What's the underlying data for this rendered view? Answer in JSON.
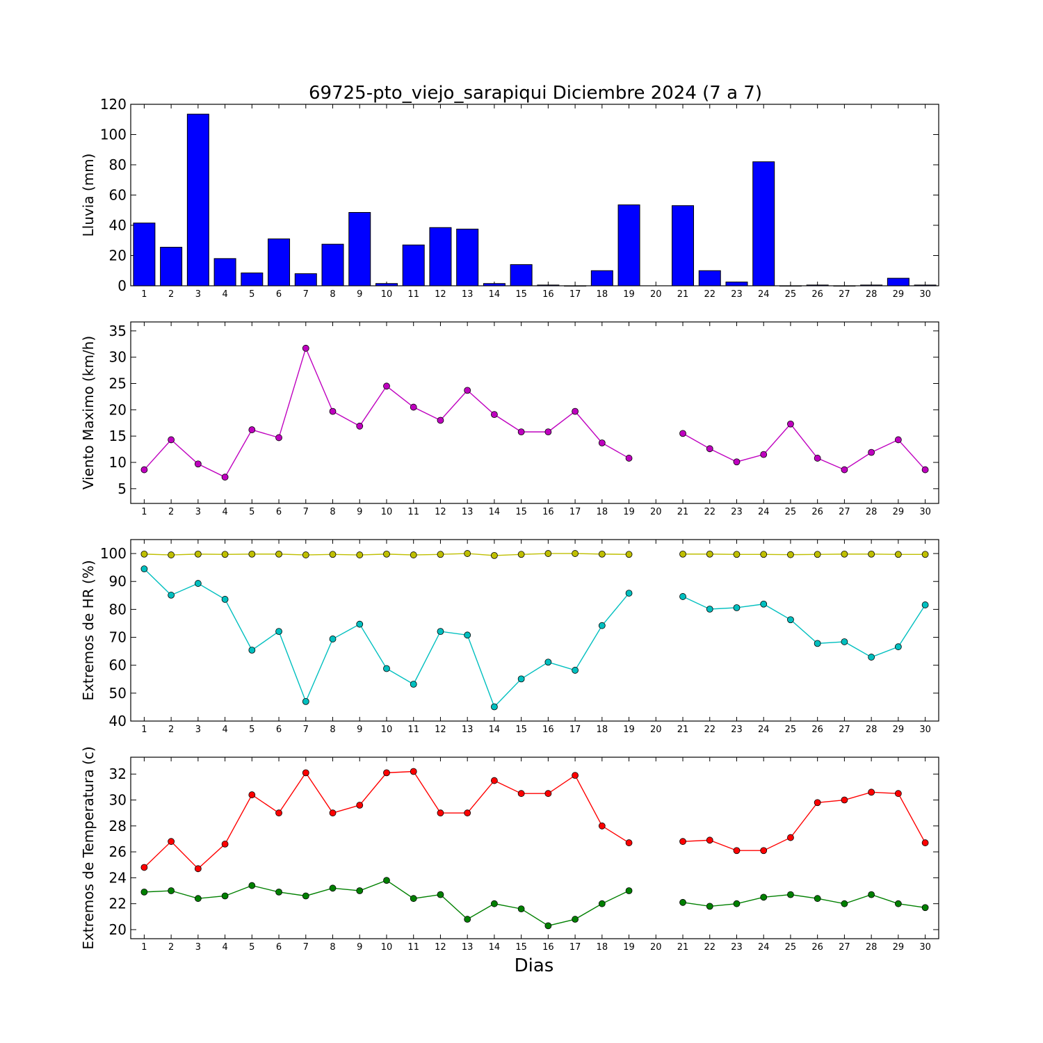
{
  "figure": {
    "title": "69725-pto_viejo_sarapiqui Diciembre 2024  (7 a 7)",
    "xlabel": "Dias"
  },
  "chart_data": [
    {
      "type": "bar",
      "ylabel": "Lluvia (mm)",
      "ylim": [
        0,
        120
      ],
      "yticks": [
        0,
        20,
        40,
        60,
        80,
        100,
        120
      ],
      "color": "#0000ff",
      "categories": [
        1,
        2,
        3,
        4,
        5,
        6,
        7,
        8,
        9,
        10,
        11,
        12,
        13,
        14,
        15,
        16,
        17,
        18,
        19,
        20,
        21,
        22,
        23,
        24,
        25,
        26,
        27,
        28,
        29,
        30
      ],
      "values": [
        41.5,
        25.5,
        113.5,
        18,
        8.5,
        31,
        8,
        27.5,
        48.5,
        1.5,
        27,
        38.5,
        37.5,
        1.5,
        14,
        0.5,
        0,
        10,
        53.5,
        null,
        53,
        10,
        2.5,
        82,
        0,
        0.5,
        0,
        0.5,
        5,
        0.5
      ]
    },
    {
      "type": "line",
      "ylabel": "Viento Maximo (km/h)",
      "ylim": [
        2.2,
        36.7
      ],
      "yticks": [
        5,
        10,
        15,
        20,
        25,
        30,
        35
      ],
      "x": [
        1,
        2,
        3,
        4,
        5,
        6,
        7,
        8,
        9,
        10,
        11,
        12,
        13,
        14,
        15,
        16,
        17,
        18,
        19,
        20,
        21,
        22,
        23,
        24,
        25,
        26,
        27,
        28,
        29,
        30
      ],
      "series": [
        {
          "color": "#bf00bf",
          "values": [
            8.6,
            14.3,
            9.7,
            7.2,
            16.2,
            14.7,
            31.7,
            19.7,
            16.9,
            24.5,
            20.5,
            18.0,
            23.7,
            19.1,
            15.8,
            15.8,
            19.7,
            13.7,
            10.8,
            null,
            15.5,
            12.6,
            10.1,
            11.5,
            17.3,
            10.8,
            8.6,
            11.9,
            14.3,
            8.6
          ]
        }
      ]
    },
    {
      "type": "line",
      "ylabel": "Extremos de HR (%)",
      "ylim": [
        40,
        105
      ],
      "yticks": [
        40,
        50,
        60,
        70,
        80,
        90,
        100
      ],
      "x": [
        1,
        2,
        3,
        4,
        5,
        6,
        7,
        8,
        9,
        10,
        11,
        12,
        13,
        14,
        15,
        16,
        17,
        18,
        19,
        20,
        21,
        22,
        23,
        24,
        25,
        26,
        27,
        28,
        29,
        30
      ],
      "series": [
        {
          "color": "#bfbf00",
          "values": [
            99.8,
            99.5,
            99.8,
            99.7,
            99.8,
            99.8,
            99.5,
            99.7,
            99.5,
            99.8,
            99.5,
            99.7,
            100,
            99.3,
            99.7,
            100,
            100,
            99.8,
            99.7,
            null,
            99.8,
            99.8,
            99.7,
            99.7,
            99.6,
            99.7,
            99.8,
            99.8,
            99.7,
            99.7
          ]
        },
        {
          "color": "#00bfbf",
          "values": [
            94.5,
            85.1,
            89.3,
            83.6,
            65.4,
            72.1,
            47.0,
            69.4,
            74.7,
            58.8,
            53.2,
            72.1,
            70.8,
            45.1,
            55.1,
            61.1,
            58.2,
            74.2,
            85.8,
            null,
            84.6,
            80.1,
            80.6,
            81.9,
            76.3,
            67.8,
            68.4,
            62.9,
            66.6,
            81.6
          ]
        }
      ]
    },
    {
      "type": "line",
      "ylabel": "Extremos de Temperatura (c)",
      "ylim": [
        19.3,
        33.3
      ],
      "yticks": [
        20,
        22,
        24,
        26,
        28,
        30,
        32
      ],
      "x": [
        1,
        2,
        3,
        4,
        5,
        6,
        7,
        8,
        9,
        10,
        11,
        12,
        13,
        14,
        15,
        16,
        17,
        18,
        19,
        20,
        21,
        22,
        23,
        24,
        25,
        26,
        27,
        28,
        29,
        30
      ],
      "series": [
        {
          "color": "#ff0000",
          "values": [
            24.8,
            26.8,
            24.7,
            26.6,
            30.4,
            29.0,
            32.1,
            29.0,
            29.6,
            32.1,
            32.2,
            29.0,
            29.0,
            31.5,
            30.5,
            30.5,
            31.9,
            28.0,
            26.7,
            null,
            26.8,
            26.9,
            26.1,
            26.1,
            27.1,
            29.8,
            30.0,
            30.6,
            30.5,
            26.7
          ]
        },
        {
          "color": "#008000",
          "values": [
            22.9,
            23.0,
            22.4,
            22.6,
            23.4,
            22.9,
            22.6,
            23.2,
            23.0,
            23.8,
            22.4,
            22.7,
            20.8,
            22.0,
            21.6,
            20.3,
            20.8,
            22.0,
            23.0,
            null,
            22.1,
            21.8,
            22.0,
            22.5,
            22.7,
            22.4,
            22.0,
            22.7,
            22.0,
            21.7
          ]
        }
      ]
    }
  ]
}
